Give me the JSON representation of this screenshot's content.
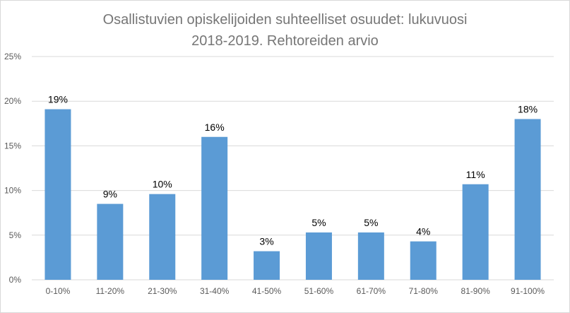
{
  "chart_data": {
    "type": "bar",
    "title_lines": [
      "Osallistuvien opiskelijoiden suhteelliset osuudet: lukuvuosi",
      "2018-2019. Rehtoreiden arvio"
    ],
    "categories": [
      "0-10%",
      "11-20%",
      "21-30%",
      "31-40%",
      "41-50%",
      "51-60%",
      "61-70%",
      "71-80%",
      "81-90%",
      "91-100%"
    ],
    "values": [
      19.1,
      8.5,
      9.6,
      16.0,
      3.2,
      5.3,
      5.3,
      4.3,
      10.7,
      18.0
    ],
    "data_labels": [
      "19%",
      "9%",
      "10%",
      "16%",
      "3%",
      "5%",
      "5%",
      "4%",
      "11%",
      "18%"
    ],
    "ylim": [
      0,
      25
    ],
    "yticks": [
      0,
      5,
      10,
      15,
      20,
      25
    ],
    "ytick_labels": [
      "0%",
      "5%",
      "10%",
      "15%",
      "20%",
      "25%"
    ],
    "grid": true,
    "legend": "none",
    "bar_color": "#5b9bd5"
  }
}
